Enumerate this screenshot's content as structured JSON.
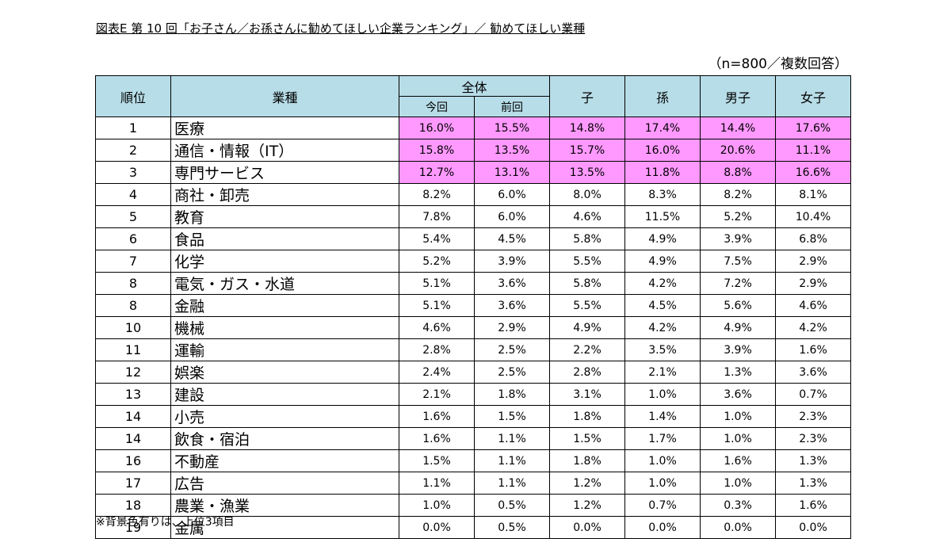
{
  "title": "図表E 第 10 回「お子さん／お孫さんに勧めてほしい企業ランキング」／ 勧めてほしい業種",
  "sample_note": "（n=800／複数回答）",
  "footnote": "※背景色有りは、上位3項目",
  "headers": {
    "rank": "順位",
    "industry": "業種",
    "overall": "全体",
    "current": "今回",
    "previous": "前回",
    "child": "子",
    "grandchild": "孫",
    "boy": "男子",
    "girl": "女子"
  },
  "highlight_color": "#ff99ff",
  "header_color": "#b7dde8",
  "rows": [
    {
      "rank": "1",
      "industry": "医療",
      "current": "16.0%",
      "previous": "15.5%",
      "child": "14.8%",
      "grandchild": "17.4%",
      "boy": "14.4%",
      "girl": "17.6%"
    },
    {
      "rank": "2",
      "industry": "通信・情報（IT）",
      "current": "15.8%",
      "previous": "13.5%",
      "child": "15.7%",
      "grandchild": "16.0%",
      "boy": "20.6%",
      "girl": "11.1%"
    },
    {
      "rank": "3",
      "industry": "専門サービス",
      "current": "12.7%",
      "previous": "13.1%",
      "child": "13.5%",
      "grandchild": "11.8%",
      "boy": "8.8%",
      "girl": "16.6%"
    },
    {
      "rank": "4",
      "industry": "商社・卸売",
      "current": "8.2%",
      "previous": "6.0%",
      "child": "8.0%",
      "grandchild": "8.3%",
      "boy": "8.2%",
      "girl": "8.1%"
    },
    {
      "rank": "5",
      "industry": "教育",
      "current": "7.8%",
      "previous": "6.0%",
      "child": "4.6%",
      "grandchild": "11.5%",
      "boy": "5.2%",
      "girl": "10.4%"
    },
    {
      "rank": "6",
      "industry": "食品",
      "current": "5.4%",
      "previous": "4.5%",
      "child": "5.8%",
      "grandchild": "4.9%",
      "boy": "3.9%",
      "girl": "6.8%"
    },
    {
      "rank": "7",
      "industry": "化学",
      "current": "5.2%",
      "previous": "3.9%",
      "child": "5.5%",
      "grandchild": "4.9%",
      "boy": "7.5%",
      "girl": "2.9%"
    },
    {
      "rank": "8",
      "industry": "電気・ガス・水道",
      "current": "5.1%",
      "previous": "3.6%",
      "child": "5.8%",
      "grandchild": "4.2%",
      "boy": "7.2%",
      "girl": "2.9%"
    },
    {
      "rank": "8",
      "industry": "金融",
      "current": "5.1%",
      "previous": "3.6%",
      "child": "5.5%",
      "grandchild": "4.5%",
      "boy": "5.6%",
      "girl": "4.6%"
    },
    {
      "rank": "10",
      "industry": "機械",
      "current": "4.6%",
      "previous": "2.9%",
      "child": "4.9%",
      "grandchild": "4.2%",
      "boy": "4.9%",
      "girl": "4.2%"
    },
    {
      "rank": "11",
      "industry": "運輸",
      "current": "2.8%",
      "previous": "2.5%",
      "child": "2.2%",
      "grandchild": "3.5%",
      "boy": "3.9%",
      "girl": "1.6%"
    },
    {
      "rank": "12",
      "industry": "娯楽",
      "current": "2.4%",
      "previous": "2.5%",
      "child": "2.8%",
      "grandchild": "2.1%",
      "boy": "1.3%",
      "girl": "3.6%"
    },
    {
      "rank": "13",
      "industry": "建設",
      "current": "2.1%",
      "previous": "1.8%",
      "child": "3.1%",
      "grandchild": "1.0%",
      "boy": "3.6%",
      "girl": "0.7%"
    },
    {
      "rank": "14",
      "industry": "小売",
      "current": "1.6%",
      "previous": "1.5%",
      "child": "1.8%",
      "grandchild": "1.4%",
      "boy": "1.0%",
      "girl": "2.3%"
    },
    {
      "rank": "14",
      "industry": "飲食・宿泊",
      "current": "1.6%",
      "previous": "1.1%",
      "child": "1.5%",
      "grandchild": "1.7%",
      "boy": "1.0%",
      "girl": "2.3%"
    },
    {
      "rank": "16",
      "industry": "不動産",
      "current": "1.5%",
      "previous": "1.1%",
      "child": "1.8%",
      "grandchild": "1.0%",
      "boy": "1.6%",
      "girl": "1.3%"
    },
    {
      "rank": "17",
      "industry": "広告",
      "current": "1.1%",
      "previous": "1.1%",
      "child": "1.2%",
      "grandchild": "1.0%",
      "boy": "1.0%",
      "girl": "1.3%"
    },
    {
      "rank": "18",
      "industry": "農業・漁業",
      "current": "1.0%",
      "previous": "0.5%",
      "child": "1.2%",
      "grandchild": "0.7%",
      "boy": "0.3%",
      "girl": "1.6%"
    },
    {
      "rank": "19",
      "industry": "金属",
      "current": "0.0%",
      "previous": "0.5%",
      "child": "0.0%",
      "grandchild": "0.0%",
      "boy": "0.0%",
      "girl": "0.0%"
    }
  ]
}
